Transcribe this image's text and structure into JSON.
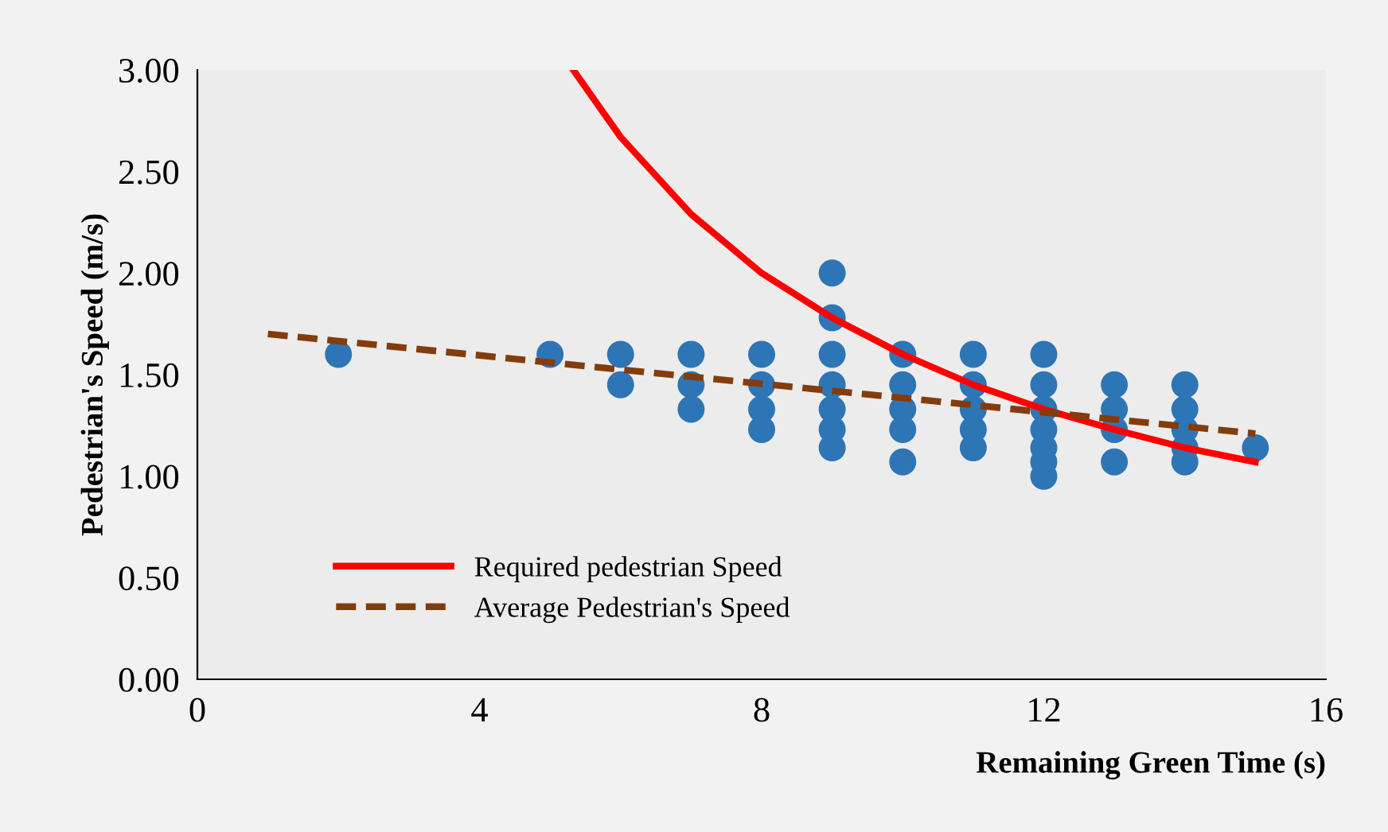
{
  "chart_data": {
    "type": "scatter",
    "xlabel": "Remaining Green Time (s)",
    "ylabel": "Pedestrian's Speed (m/s)",
    "xlim": [
      0,
      16
    ],
    "xticks": [
      0,
      4,
      8,
      12,
      16
    ],
    "ylim": [
      0,
      3
    ],
    "yticks": [
      {
        "value": 0,
        "label": "0.00"
      },
      {
        "value": 0.5,
        "label": "0.50"
      },
      {
        "value": 1,
        "label": "1.00"
      },
      {
        "value": 1.5,
        "label": "1.50"
      },
      {
        "value": 2,
        "label": "2.00"
      },
      {
        "value": 2.5,
        "label": "2.50"
      },
      {
        "value": 3,
        "label": "3.00"
      }
    ],
    "grid": false,
    "legend": "bottom left",
    "series": [
      {
        "color": "#2e75b6",
        "marker": "circle",
        "x": [
          2,
          5,
          6,
          6,
          7,
          7,
          7,
          8,
          8,
          8,
          8,
          9,
          9,
          9,
          9,
          9,
          9,
          9,
          10,
          10,
          10,
          10,
          10,
          11,
          11,
          11,
          11,
          11,
          12,
          12,
          12,
          12,
          12,
          12,
          12,
          13,
          13,
          13,
          13,
          14,
          14,
          14,
          14,
          14,
          15
        ],
        "values": [
          1.6,
          1.6,
          1.6,
          1.45,
          1.6,
          1.45,
          1.33,
          1.6,
          1.45,
          1.33,
          1.23,
          2.0,
          1.78,
          1.6,
          1.45,
          1.33,
          1.23,
          1.14,
          1.6,
          1.45,
          1.33,
          1.23,
          1.07,
          1.6,
          1.45,
          1.33,
          1.23,
          1.14,
          1.6,
          1.45,
          1.33,
          1.23,
          1.14,
          1.07,
          1.0,
          1.45,
          1.33,
          1.23,
          1.07,
          1.45,
          1.33,
          1.23,
          1.14,
          1.07,
          1.14
        ]
      },
      {
        "type": "line",
        "name": "Required pedestrian Speed",
        "color": "#ff0000",
        "line_style": "solid",
        "x": [
          5.33,
          6,
          7,
          8,
          9,
          10,
          11,
          12,
          13,
          14,
          15
        ],
        "values": [
          3.0,
          2.67,
          2.29,
          2.0,
          1.78,
          1.6,
          1.45,
          1.33,
          1.23,
          1.14,
          1.07
        ]
      },
      {
        "type": "line",
        "name": "Average Pedestrian's Speed",
        "color": "#843c0c",
        "line_style": "dashed",
        "x": [
          1,
          15
        ],
        "values": [
          1.7,
          1.21
        ]
      }
    ]
  }
}
